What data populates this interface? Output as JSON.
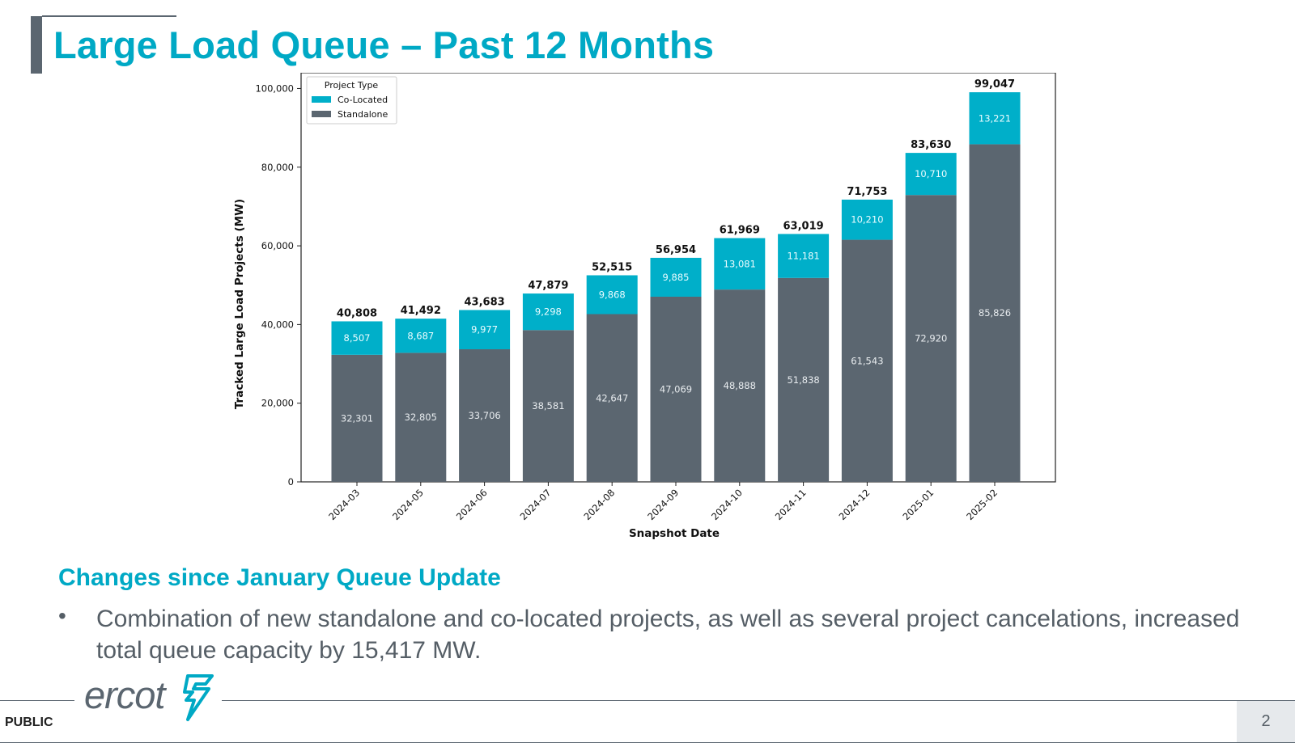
{
  "slide": {
    "title": "Large Load Queue – Past 12 Months",
    "subheading": "Changes since January Queue Update",
    "bullet_marker": "•",
    "bullet": "Combination of new standalone and co-located projects, as well as several project cancelations, increased total queue capacity by 15,417 MW.",
    "logo_text": "ercot",
    "classification": "PUBLIC",
    "page_number": "2"
  },
  "colors": {
    "accent": "#00a9c5",
    "colocated": "#00afc9",
    "standalone": "#5b6670",
    "text_gray": "#555e66"
  },
  "chart_data": {
    "type": "bar",
    "stacked": true,
    "xlabel": "Snapshot Date",
    "ylabel": "Tracked Large Load Projects (MW)",
    "ylim": [
      0,
      104000
    ],
    "yticks": [
      0,
      20000,
      40000,
      60000,
      80000,
      100000
    ],
    "ytick_labels": [
      "0",
      "20,000",
      "40,000",
      "60,000",
      "80,000",
      "100,000"
    ],
    "legend_title": "Project Type",
    "legend_position": "top-left",
    "categories": [
      "2024-03",
      "2024-05",
      "2024-06",
      "2024-07",
      "2024-08",
      "2024-09",
      "2024-10",
      "2024-11",
      "2024-12",
      "2025-01",
      "2025-02"
    ],
    "series": [
      {
        "name": "Standalone",
        "values": [
          32301,
          32805,
          33706,
          38581,
          42647,
          47069,
          48888,
          51838,
          61543,
          72920,
          85826
        ]
      },
      {
        "name": "Co-Located",
        "values": [
          8507,
          8687,
          9977,
          9298,
          9868,
          9885,
          13081,
          11181,
          10210,
          10710,
          13221
        ]
      }
    ],
    "totals": [
      40808,
      41492,
      43683,
      47879,
      52515,
      56954,
      61969,
      63019,
      71753,
      83630,
      99047
    ]
  }
}
